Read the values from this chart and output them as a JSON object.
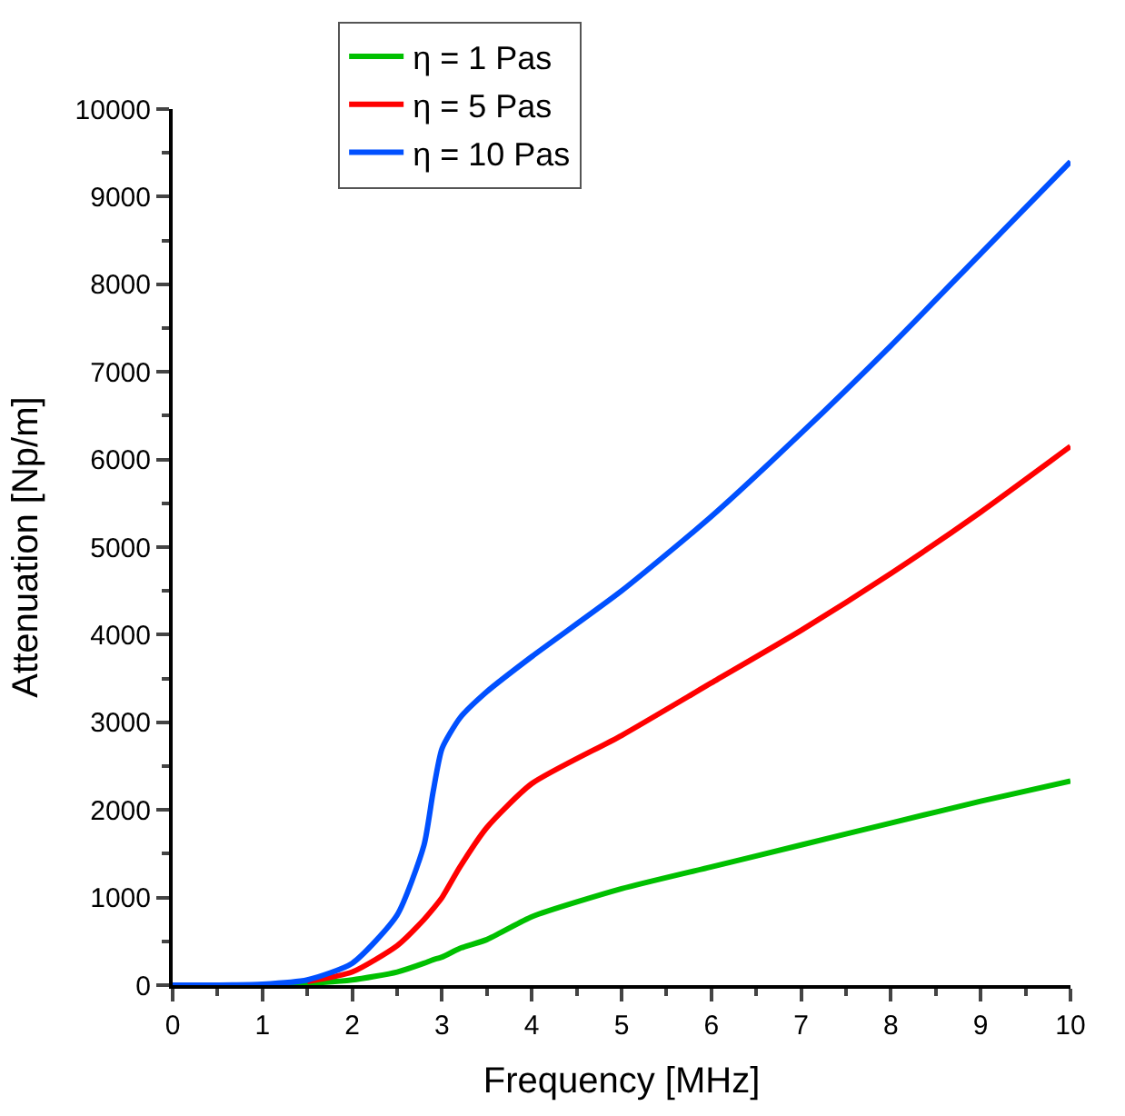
{
  "chart_data": {
    "type": "line",
    "xlabel": "Frequency [MHz]",
    "ylabel": "Attenuation [Np/m]",
    "x": [
      0,
      0.5,
      1,
      1.5,
      2,
      2.5,
      2.8,
      2.9,
      3,
      3.2,
      3.5,
      4,
      5,
      6,
      7,
      8,
      9,
      10
    ],
    "series": [
      {
        "name": "η = 1 Pas",
        "color": "#00c000",
        "values": [
          null,
          null,
          0,
          20,
          60,
          150,
          250,
          290,
          320,
          420,
          520,
          780,
          1100,
          1350,
          1600,
          1850,
          2100,
          2330
        ]
      },
      {
        "name": "η = 5 Pas",
        "color": "#ff0000",
        "values": [
          null,
          null,
          null,
          40,
          150,
          450,
          750,
          870,
          1000,
          1350,
          1800,
          2300,
          2850,
          3450,
          4050,
          4700,
          5400,
          6150
        ]
      },
      {
        "name": "η = 10 Pas",
        "color": "#0050ff",
        "values": [
          0,
          0,
          10,
          60,
          250,
          800,
          1600,
          2200,
          2700,
          3050,
          3350,
          3750,
          4500,
          5350,
          6300,
          7300,
          8350,
          9400
        ]
      }
    ],
    "xlim": [
      0,
      10
    ],
    "xticks": [
      0,
      1,
      2,
      3,
      4,
      5,
      6,
      7,
      8,
      9,
      10
    ],
    "ylim": [
      0,
      10000
    ],
    "yticks": [
      0,
      1000,
      2000,
      3000,
      4000,
      5000,
      6000,
      7000,
      8000,
      9000,
      10000
    ],
    "legend": "top",
    "marker": "none",
    "line_style": "solid"
  }
}
